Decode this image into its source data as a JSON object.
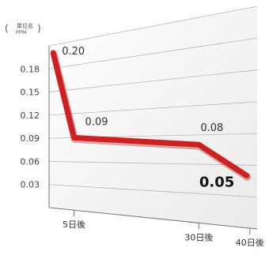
{
  "chart_data": {
    "type": "line",
    "title": "",
    "xlabel": "",
    "ylabel": "",
    "unit_label": [
      "単位名",
      "PPM"
    ],
    "ylim": [
      0,
      0.21
    ],
    "y_ticks": [
      "0.18",
      "0.15",
      "0.12",
      "0.09",
      "0.06",
      "0.03"
    ],
    "x_ticks": [
      "5日後",
      "30日後",
      "40日後"
    ],
    "grid": true,
    "series": [
      {
        "color": "#d11f1f",
        "points": [
          {
            "x": 0,
            "y": 0.2,
            "label": "0.20"
          },
          {
            "x": 5,
            "y": 0.09,
            "label": "0.09"
          },
          {
            "x": 30,
            "y": 0.08,
            "label": "0.08"
          },
          {
            "x": 40,
            "y": 0.05,
            "label": "0.05",
            "emphasis": true
          }
        ]
      }
    ]
  }
}
